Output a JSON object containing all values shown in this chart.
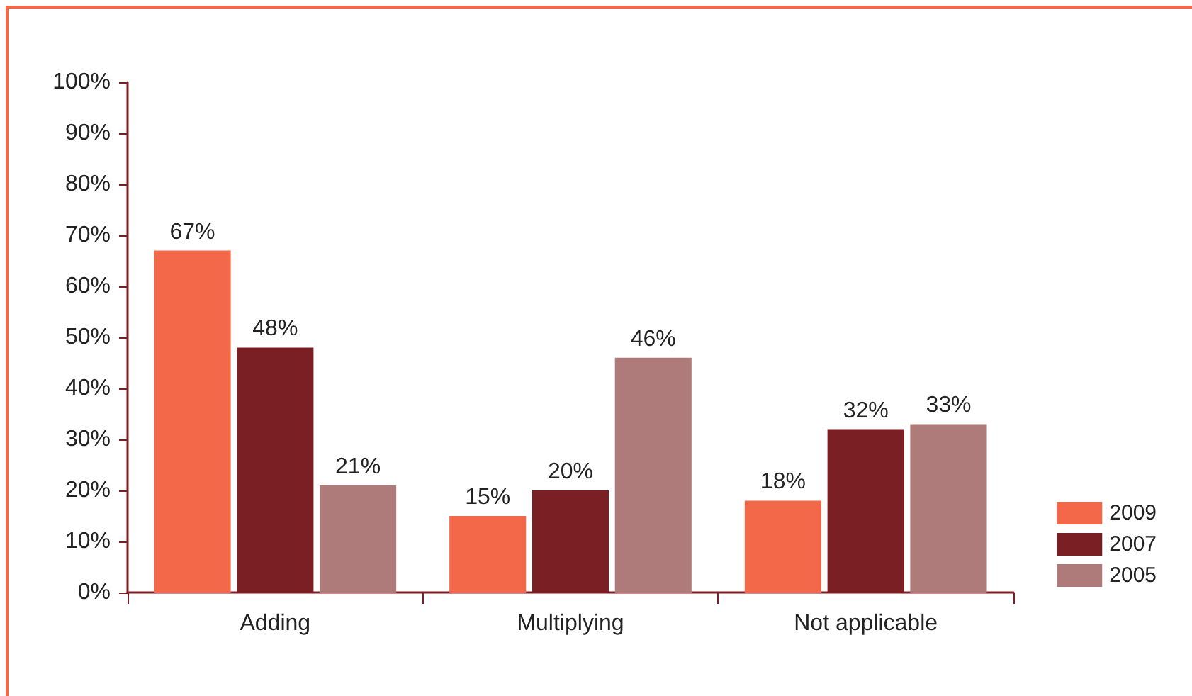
{
  "chart_data": {
    "type": "bar",
    "categories": [
      "Adding",
      "Multiplying",
      "Not applicable"
    ],
    "series": [
      {
        "name": "2009",
        "color": "#f26849",
        "values": [
          67,
          15,
          18
        ],
        "value_labels": [
          "67%",
          "15%",
          "18%"
        ]
      },
      {
        "name": "2007",
        "color": "#7a1f23",
        "values": [
          48,
          20,
          32
        ],
        "value_labels": [
          "48%",
          "20%",
          "32%"
        ]
      },
      {
        "name": "2005",
        "color": "#ae7b7a",
        "values": [
          21,
          46,
          33
        ],
        "value_labels": [
          "21%",
          "46%",
          "33%"
        ]
      }
    ],
    "ylim": [
      0,
      100
    ],
    "yticks": [
      {
        "value": 0,
        "label": "0%"
      },
      {
        "value": 10,
        "label": "10%"
      },
      {
        "value": 20,
        "label": "20%"
      },
      {
        "value": 30,
        "label": "30%"
      },
      {
        "value": 40,
        "label": "40%"
      },
      {
        "value": 50,
        "label": "50%"
      },
      {
        "value": 60,
        "label": "60%"
      },
      {
        "value": 70,
        "label": "70%"
      },
      {
        "value": 80,
        "label": "80%"
      },
      {
        "value": 90,
        "label": "90%"
      },
      {
        "value": 100,
        "label": "100%"
      }
    ],
    "grid": false,
    "legend": "right"
  }
}
